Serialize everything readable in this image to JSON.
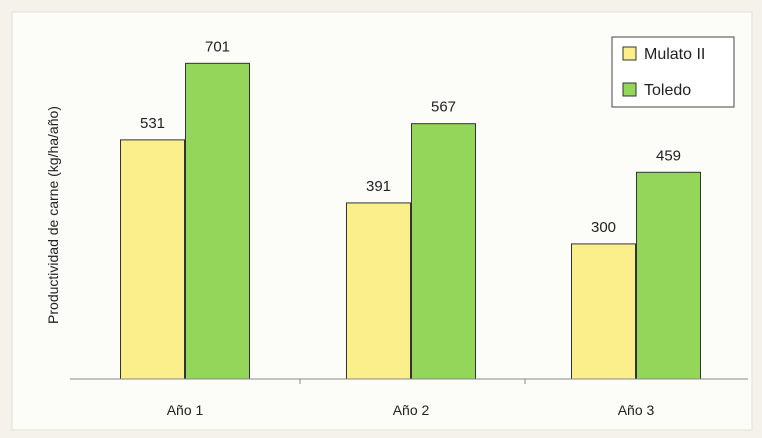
{
  "chart_data": {
    "type": "bar",
    "title": "",
    "xlabel": "",
    "ylabel": "Productividad de carne (kg/ha/año)",
    "categories": [
      "Año 1",
      "Año 2",
      "Año 3"
    ],
    "series": [
      {
        "name": "Mulato II",
        "values": [
          531,
          391,
          300
        ],
        "color": "#fbef8c"
      },
      {
        "name": "Toledo",
        "values": [
          701,
          567,
          459
        ],
        "color": "#93d65a"
      }
    ],
    "ylim": [
      0,
      775
    ],
    "grid": false,
    "legend": "top-right"
  }
}
